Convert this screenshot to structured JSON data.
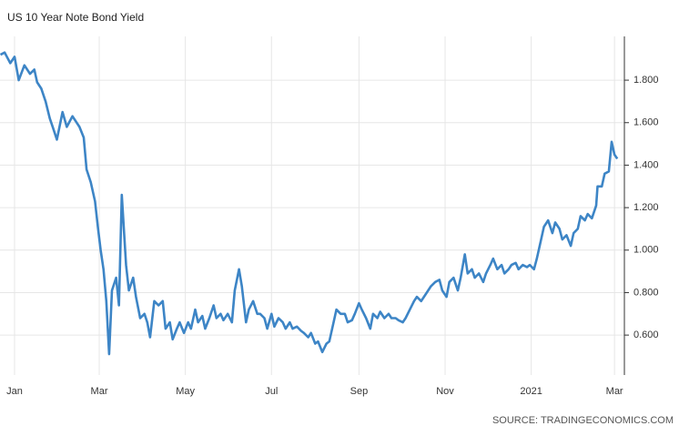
{
  "chart_data": {
    "type": "line",
    "title": "US 10 Year Note Bond Yield",
    "source": "SOURCE: TRADINGECONOMICS.COM",
    "x": [
      -10,
      -7,
      -3,
      0,
      3,
      7,
      11,
      14,
      16,
      19,
      22,
      25,
      27,
      30,
      34,
      37,
      41,
      46,
      49,
      51,
      54,
      57,
      59,
      61,
      63,
      65,
      67,
      69,
      72,
      74,
      76,
      79,
      81,
      84,
      86,
      89,
      92,
      94,
      96,
      99,
      102,
      105,
      107,
      110,
      112,
      115,
      117,
      120,
      123,
      125,
      128,
      130,
      133,
      135,
      138,
      141,
      143,
      146,
      148,
      151,
      154,
      156,
      159,
      161,
      164,
      166,
      169,
      172,
      174,
      177,
      179,
      182,
      184,
      187,
      190,
      192,
      195,
      197,
      200,
      203,
      205,
      208,
      210,
      213,
      215,
      218,
      221,
      223,
      226,
      228,
      231,
      234,
      236,
      239,
      241,
      244,
      246,
      249,
      252,
      254,
      257,
      259,
      262,
      265,
      267,
      270,
      272,
      275,
      277,
      280,
      283,
      285,
      288,
      290,
      293,
      295,
      298,
      301,
      303,
      306,
      308,
      311,
      314,
      316,
      319,
      321,
      324,
      326,
      329,
      332,
      334,
      337,
      339,
      342,
      345,
      347,
      350,
      352,
      355,
      357,
      360,
      363,
      365,
      368,
      370,
      373,
      375,
      378,
      381,
      383,
      386,
      388,
      391,
      394,
      396,
      399,
      401,
      404,
      406,
      409,
      412,
      413,
      416,
      418,
      421,
      423,
      425,
      427
    ],
    "series": [
      {
        "name": "US 10 Year Note Bond Yield",
        "color": "#3d85c6",
        "values": [
          1.92,
          1.93,
          1.88,
          1.91,
          1.8,
          1.87,
          1.83,
          1.85,
          1.79,
          1.76,
          1.7,
          1.62,
          1.58,
          1.52,
          1.65,
          1.58,
          1.63,
          1.58,
          1.53,
          1.38,
          1.32,
          1.23,
          1.11,
          1.0,
          0.91,
          0.76,
          0.51,
          0.81,
          0.87,
          0.74,
          1.26,
          0.93,
          0.81,
          0.87,
          0.78,
          0.68,
          0.7,
          0.66,
          0.59,
          0.76,
          0.74,
          0.76,
          0.63,
          0.66,
          0.58,
          0.63,
          0.66,
          0.61,
          0.66,
          0.63,
          0.72,
          0.66,
          0.69,
          0.63,
          0.68,
          0.74,
          0.68,
          0.7,
          0.67,
          0.7,
          0.66,
          0.81,
          0.91,
          0.83,
          0.66,
          0.72,
          0.76,
          0.7,
          0.7,
          0.68,
          0.63,
          0.7,
          0.64,
          0.68,
          0.66,
          0.63,
          0.66,
          0.63,
          0.64,
          0.62,
          0.61,
          0.59,
          0.61,
          0.56,
          0.57,
          0.52,
          0.56,
          0.57,
          0.66,
          0.72,
          0.7,
          0.7,
          0.66,
          0.67,
          0.7,
          0.75,
          0.72,
          0.68,
          0.63,
          0.7,
          0.68,
          0.71,
          0.68,
          0.7,
          0.68,
          0.68,
          0.67,
          0.66,
          0.68,
          0.72,
          0.76,
          0.78,
          0.76,
          0.78,
          0.81,
          0.83,
          0.85,
          0.86,
          0.81,
          0.78,
          0.85,
          0.87,
          0.81,
          0.87,
          0.98,
          0.89,
          0.91,
          0.87,
          0.89,
          0.85,
          0.89,
          0.93,
          0.96,
          0.91,
          0.93,
          0.89,
          0.91,
          0.93,
          0.94,
          0.91,
          0.93,
          0.92,
          0.93,
          0.91,
          0.96,
          1.05,
          1.11,
          1.14,
          1.08,
          1.13,
          1.1,
          1.05,
          1.07,
          1.02,
          1.08,
          1.1,
          1.16,
          1.14,
          1.17,
          1.15,
          1.21,
          1.3,
          1.3,
          1.36,
          1.37,
          1.51,
          1.45,
          1.43
        ]
      }
    ],
    "xlim": [
      -10.3,
      432
    ],
    "xticks": [
      {
        "value": 0,
        "label": "Jan"
      },
      {
        "value": 60,
        "label": "Mar"
      },
      {
        "value": 121,
        "label": "May"
      },
      {
        "value": 182,
        "label": "Jul"
      },
      {
        "value": 244,
        "label": "Sep"
      },
      {
        "value": 305,
        "label": "Nov"
      },
      {
        "value": 366,
        "label": "2021"
      },
      {
        "value": 425,
        "label": "Mar"
      }
    ],
    "ylim": [
      0.412,
      2.006
    ],
    "yticks": [
      {
        "value": 0.6,
        "label": "0.600"
      },
      {
        "value": 0.8,
        "label": "0.800"
      },
      {
        "value": 1.0,
        "label": "1.000"
      },
      {
        "value": 1.2,
        "label": "1.200"
      },
      {
        "value": 1.4,
        "label": "1.400"
      },
      {
        "value": 1.6,
        "label": "1.600"
      },
      {
        "value": 1.8,
        "label": "1.800"
      }
    ],
    "grid": true
  }
}
